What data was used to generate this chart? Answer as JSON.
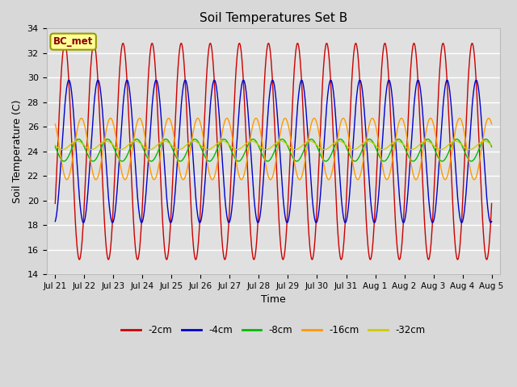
{
  "title": "Soil Temperatures Set B",
  "xlabel": "Time",
  "ylabel": "Soil Temperature (C)",
  "ylim": [
    14,
    34
  ],
  "background_color": "#e0e0e0",
  "plot_bg_color": "#d8d8d8",
  "annotation_text": "BC_met",
  "annotation_bg": "#ffff99",
  "annotation_border": "#999900",
  "series": [
    {
      "label": "-2cm",
      "color": "#cc0000",
      "amplitude": 8.8,
      "phase": 0.08,
      "mean": 24.0
    },
    {
      "label": "-4cm",
      "color": "#0000cc",
      "amplitude": 5.8,
      "phase": 0.22,
      "mean": 24.0
    },
    {
      "label": "-8cm",
      "color": "#00bb00",
      "amplitude": 0.9,
      "phase": 0.55,
      "mean": 24.1
    },
    {
      "label": "-16cm",
      "color": "#ff9900",
      "amplitude": 2.5,
      "phase": 0.65,
      "mean": 24.2
    },
    {
      "label": "-32cm",
      "color": "#cccc00",
      "amplitude": 0.35,
      "phase": 1.5,
      "mean": 24.5
    }
  ],
  "xtick_labels": [
    "Jul 21",
    "Jul 22",
    "Jul 23",
    "Jul 24",
    "Jul 25",
    "Jul 26",
    "Jul 27",
    "Jul 28",
    "Jul 29",
    "Jul 30",
    "Jul 31",
    "Aug 1",
    "Aug 2",
    "Aug 3",
    "Aug 4",
    "Aug 5"
  ],
  "xtick_positions": [
    0,
    1,
    2,
    3,
    4,
    5,
    6,
    7,
    8,
    9,
    10,
    11,
    12,
    13,
    14,
    15
  ],
  "ytick_positions": [
    14,
    16,
    18,
    20,
    22,
    24,
    26,
    28,
    30,
    32,
    34
  ],
  "period_days": 1.0,
  "total_days": 15.0,
  "points_per_day": 96
}
